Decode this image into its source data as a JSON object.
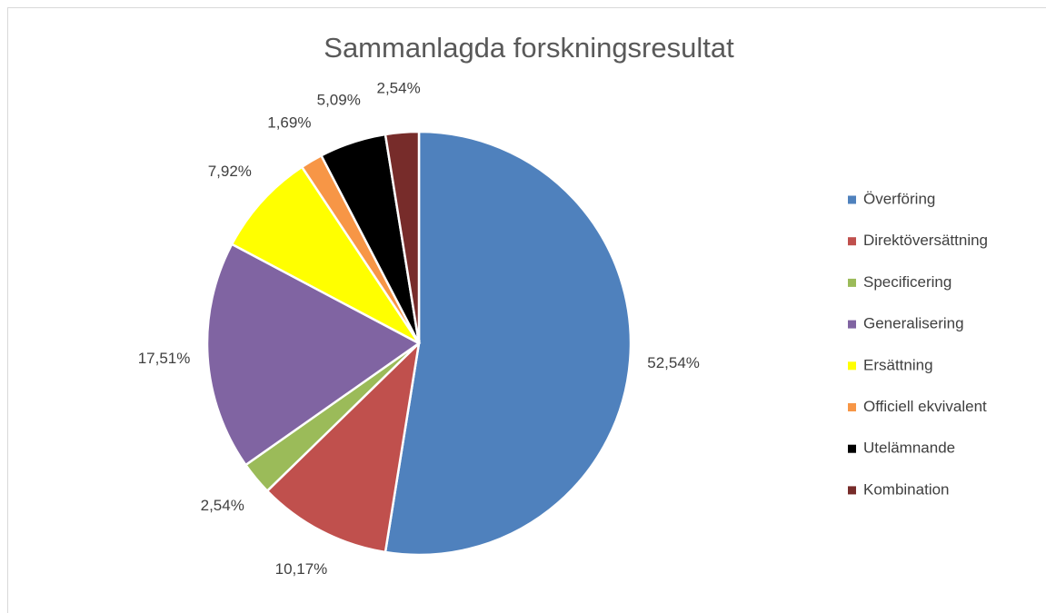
{
  "chart_data": {
    "type": "pie",
    "title": "Sammanlagda forskningsresultat",
    "categories": [
      "Överföring",
      "Direktöversättning",
      "Specificering",
      "Generalisering",
      "Ersättning",
      "Officiell ekvivalent",
      "Utelämnande",
      "Kombination"
    ],
    "values": [
      52.54,
      10.17,
      2.54,
      17.51,
      7.92,
      1.69,
      5.09,
      2.54
    ],
    "value_labels": [
      "52,54%",
      "10,17%",
      "2,54%",
      "17,51%",
      "7,92%",
      "1,69%",
      "5,09%",
      "2,54%"
    ],
    "colors": [
      "#4f81bd",
      "#c0504d",
      "#9bbb59",
      "#8064a2",
      "#ffff00",
      "#f79646",
      "#000000",
      "#772c2a"
    ],
    "legend": "right"
  }
}
